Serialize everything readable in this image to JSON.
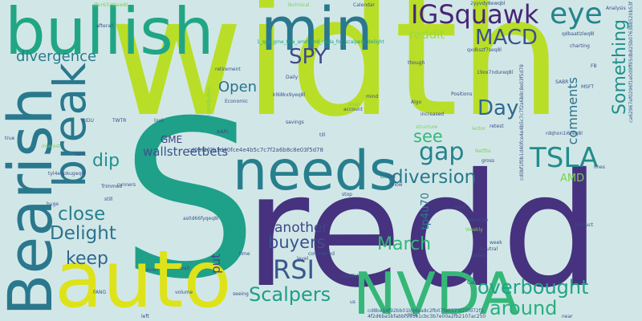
{
  "background": "#d1e7e7",
  "words": [
    {
      "text": "width",
      "color": "#b9de28"
    },
    {
      "text": "redd",
      "color": "#46327e"
    },
    {
      "text": "S",
      "color": "#1fa088"
    },
    {
      "text": "auto",
      "color": "#dde318"
    },
    {
      "text": "bullish",
      "color": "#21a685"
    },
    {
      "text": "min",
      "color": "#2a788e"
    },
    {
      "text": "Bearish",
      "color": "#2a788e"
    },
    {
      "text": "NVDA",
      "color": "#35b779"
    },
    {
      "text": "needs",
      "color": "#277f8e"
    },
    {
      "text": "break",
      "color": "#2a788e"
    },
    {
      "text": "IGSquawk",
      "color": "#482475"
    },
    {
      "text": "eye",
      "color": "#25848e"
    },
    {
      "text": "MACD",
      "color": "#3b528b"
    },
    {
      "text": "SPY",
      "color": "#3e4989"
    },
    {
      "text": "divergence",
      "color": "#287c8e"
    },
    {
      "text": "reddit",
      "color": "#9bd93c"
    },
    {
      "text": "Something",
      "color": "#218f8d"
    },
    {
      "text": "Open",
      "color": "#2c728e"
    },
    {
      "text": "Day",
      "color": "#31688e"
    },
    {
      "text": "gap",
      "color": "#26828e"
    },
    {
      "text": "TSLA",
      "color": "#228c8d"
    },
    {
      "text": "see",
      "color": "#35b779"
    },
    {
      "text": "dip",
      "color": "#21918c"
    },
    {
      "text": "wallstreetbets",
      "color": "#3b528b"
    },
    {
      "text": "diversion",
      "color": "#2a788e"
    },
    {
      "text": "GME",
      "color": "#433e85"
    },
    {
      "text": "close",
      "color": "#277f8e"
    },
    {
      "text": "Delight",
      "color": "#2c728e"
    },
    {
      "text": "keep",
      "color": "#31688e"
    },
    {
      "text": "RSI",
      "color": "#38598c"
    },
    {
      "text": "buyers",
      "color": "#3b528b"
    },
    {
      "text": "another",
      "color": "#3f4788"
    },
    {
      "text": "March",
      "color": "#35b779"
    },
    {
      "text": "overbought",
      "color": "#20a486"
    },
    {
      "text": "around",
      "color": "#29af7f"
    },
    {
      "text": "Scalpers",
      "color": "#1f9e89"
    },
    {
      "text": "put",
      "color": "#3e4989"
    },
    {
      "text": "comments",
      "color": "#2d708e"
    },
    {
      "text": "AMD",
      "color": "#7ad151"
    },
    {
      "text": "tp4u70",
      "color": "#2a788e"
    },
    {
      "text": "cd0bf1f0b1d40fce4e4b5c7c7f2a6b8c8e03f5d78",
      "color": "#3b528b"
    },
    {
      "text": "cd0bf1f0b1d40fce4e4b5c7c7f2a6b8c8e03f5d78",
      "color": "#3b528b"
    },
    {
      "text": "cd8be14f92bb01b0dea8c2fb07fe0373f25fd72f5",
      "color": "#38598c"
    },
    {
      "text": "4f2d6ba5bfabbf993e1cbc3b7e00a2fb2107ac250",
      "color": "#3e4989"
    },
    {
      "text": "1_spy_gme_tsla_amd_and_nvda_for_scalpers_delight",
      "color": "#20a386"
    },
    {
      "text": "2yyvdy8ewqbl",
      "color": "#3b528b"
    },
    {
      "text": "ca62967ef0296f1e0d9ff05db825b0763b8520b53f",
      "color": "#38598c"
    },
    {
      "text": "Analysis",
      "color": "#3e4989"
    },
    {
      "text": "Technical",
      "color": "#7ad151"
    },
    {
      "text": "Calendar",
      "color": "#3b528b"
    },
    {
      "text": "afterall",
      "color": "#3b528b"
    },
    {
      "text": "dfvr632l0aw8l",
      "color": "#7ad151"
    },
    {
      "text": "qdbaatlzleq8l",
      "color": "#3b528b"
    },
    {
      "text": "charting",
      "color": "#3e4989"
    },
    {
      "text": "qxdkszf7seq8l",
      "color": "#3b528b"
    },
    {
      "text": "retirement",
      "color": "#3b528b"
    },
    {
      "text": "Daily",
      "color": "#3e4989"
    },
    {
      "text": "kl68kx9yeq8l",
      "color": "#3b528b"
    },
    {
      "text": "Positions",
      "color": "#3e4989"
    },
    {
      "text": "19ox7ndureq8l",
      "color": "#3b528b"
    },
    {
      "text": "though",
      "color": "#3e4989"
    },
    {
      "text": "Algo",
      "color": "#3b528b"
    },
    {
      "text": "mind",
      "color": "#3e4989"
    },
    {
      "text": "snap",
      "color": "#7ad151"
    },
    {
      "text": "account",
      "color": "#3b528b"
    },
    {
      "text": "increased",
      "color": "#3e4989"
    },
    {
      "text": "Economic",
      "color": "#3b528b"
    },
    {
      "text": "contribution",
      "color": "#7ad151"
    },
    {
      "text": "SABR",
      "color": "#3e4989"
    },
    {
      "text": "MSFT",
      "color": "#3b528b"
    },
    {
      "text": "BIDU",
      "color": "#3b528b"
    },
    {
      "text": "TWTR",
      "color": "#3e4989"
    },
    {
      "text": "look",
      "color": "#3b528b"
    },
    {
      "text": "savings",
      "color": "#3e4989"
    },
    {
      "text": "till",
      "color": "#3b528b"
    },
    {
      "text": "retest",
      "color": "#3e4989"
    },
    {
      "text": "lector",
      "color": "#7ad151"
    },
    {
      "text": "rdqhon1i6req8l",
      "color": "#3b528b"
    },
    {
      "text": "structure",
      "color": "#7ad151"
    },
    {
      "text": "FANG",
      "color": "#3b528b"
    },
    {
      "text": "true",
      "color": "#3e4989"
    },
    {
      "text": "tank",
      "color": "#3b528b"
    },
    {
      "text": "interest",
      "color": "#7ad151"
    },
    {
      "text": "tyl4eqpkugeq8l",
      "color": "#3b528b"
    },
    {
      "text": "Trimmed",
      "color": "#3e4989"
    },
    {
      "text": "runners",
      "color": "#3b528b"
    },
    {
      "text": "still",
      "color": "#3e4989"
    },
    {
      "text": "GOOG",
      "color": "#3b528b"
    },
    {
      "text": "stop",
      "color": "#3b528b"
    },
    {
      "text": "want",
      "color": "#3e4989"
    },
    {
      "text": "observe",
      "color": "#3b528b"
    },
    {
      "text": "Netflix",
      "color": "#7ad151"
    },
    {
      "text": "gross",
      "color": "#3e4989"
    },
    {
      "text": "time",
      "color": "#3b528b"
    },
    {
      "text": "level",
      "color": "#3e4989"
    },
    {
      "text": "considered",
      "color": "#3b528b"
    },
    {
      "text": "wait",
      "color": "#3e4989"
    },
    {
      "text": "mindful",
      "color": "#3b528b"
    },
    {
      "text": "Neutral",
      "color": "#3e4989"
    },
    {
      "text": "today",
      "color": "#3b528b"
    },
    {
      "text": "Calls",
      "color": "#3e4989"
    },
    {
      "text": "even",
      "color": "#3b528b"
    },
    {
      "text": "left",
      "color": "#3e4989"
    },
    {
      "text": "volume",
      "color": "#3b528b"
    },
    {
      "text": "seeing",
      "color": "#3e4989"
    },
    {
      "text": "us",
      "color": "#3b528b"
    },
    {
      "text": "nice",
      "color": "#3e4989"
    },
    {
      "text": "near",
      "color": "#3b528b"
    },
    {
      "text": "Weekly",
      "color": "#7ad151"
    },
    {
      "text": "week",
      "color": "#3b528b"
    },
    {
      "text": "product",
      "color": "#3e4989"
    },
    {
      "text": "Flow",
      "color": "#3b528b"
    },
    {
      "text": "AAPL",
      "color": "#3e4989"
    },
    {
      "text": "huge",
      "color": "#3b528b"
    },
    {
      "text": "as0d66fyqeq8l",
      "color": "#3b528b"
    },
    {
      "text": "FB",
      "color": "#3e4989"
    },
    {
      "text": "lines",
      "color": "#3b528b"
    }
  ]
}
